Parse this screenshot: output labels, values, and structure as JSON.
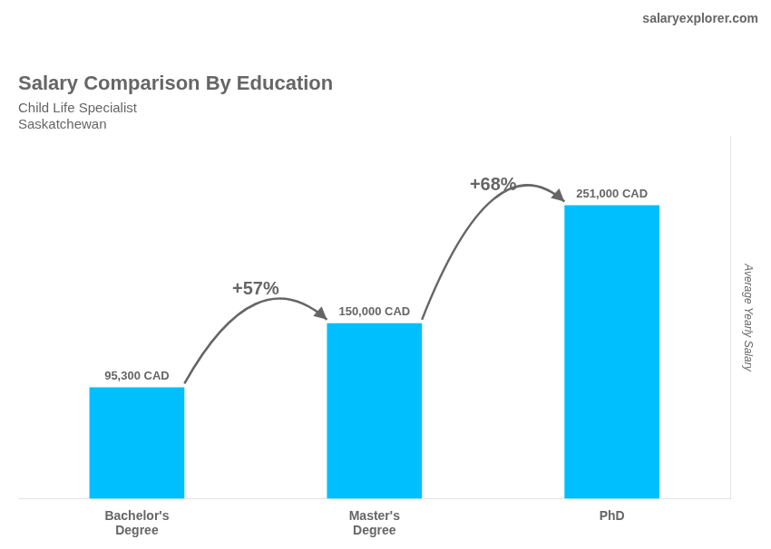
{
  "chart_data": {
    "type": "bar",
    "title": "Salary Comparison By Education",
    "subtitle": [
      "Child Life Specialist",
      "Saskatchewan"
    ],
    "ylabel": "Average Yearly Salary",
    "categories": [
      "Bachelor's\nDegree",
      "Master's\nDegree",
      "PhD"
    ],
    "values": [
      95300,
      150000,
      251000
    ],
    "value_labels": [
      "95,300 CAD",
      "150,000 CAD",
      "251,000 CAD"
    ],
    "data_labels": true,
    "color": "#00BFFF",
    "ylim": [
      0,
      310000
    ],
    "grid": false,
    "tick_labels": "x",
    "annotations": [
      {
        "type": "text",
        "text": "salaryexplorer.com"
      },
      {
        "type": "arrow",
        "text": "+57%"
      },
      {
        "type": "arrow",
        "text": "+68%"
      }
    ]
  }
}
